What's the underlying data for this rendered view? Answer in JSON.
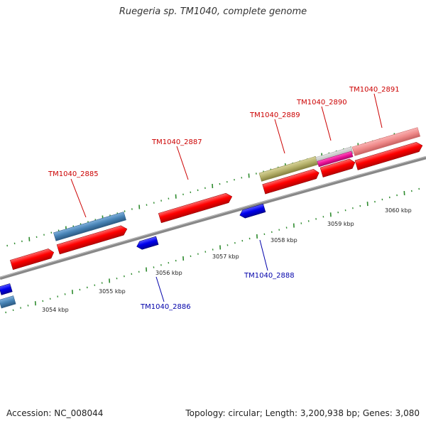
{
  "title": "Ruegeria sp. TM1040, complete genome",
  "footer": {
    "accession": "Accession: NC_008044",
    "summary": "Topology: circular; Length: 3,200,938 bp; Genes: 3,080"
  },
  "colors": {
    "backbone": "#888888",
    "forward_label": "#cc0000",
    "reverse_label": "#0000aa",
    "tick": "#2e8b2e",
    "cds": "#ff0000",
    "reverse_gene": "#0000ee",
    "steelblue_gene": "#4682b4",
    "olive_gene": "#b5b06a",
    "gray_gene": "#c4c4c4",
    "magenta_gene": "#ee1199",
    "pink_gene": "#f08a8a"
  },
  "scale": {
    "unit": "kbp",
    "tick_labels": [
      "3054 kbp",
      "3055 kbp",
      "3056 kbp",
      "3057 kbp",
      "3058 kbp",
      "3059 kbp",
      "3060 kbp"
    ]
  },
  "genes": {
    "forward_labels": [
      "TM1040_2885",
      "TM1040_2887",
      "TM1040_2889",
      "TM1040_2890",
      "TM1040_2891"
    ],
    "reverse_labels": [
      "TM1040_2886",
      "TM1040_2888"
    ]
  }
}
